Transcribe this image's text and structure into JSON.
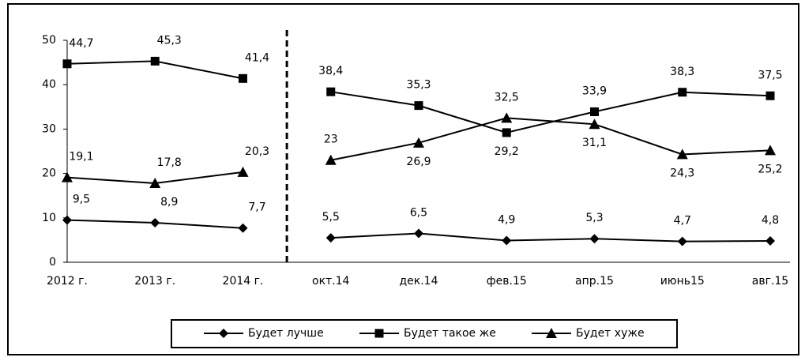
{
  "chart_data": {
    "type": "line",
    "categories": [
      "2012 г.",
      "2013 г.",
      "2014 г.",
      "окт.14",
      "дек.14",
      "фев.15",
      "апр.15",
      "июнь15",
      "авг.15"
    ],
    "series": [
      {
        "name": "Будет лучше",
        "color": "#000000",
        "marker": "diamond",
        "values": [
          9.5,
          8.9,
          7.7,
          5.5,
          6.5,
          4.9,
          5.3,
          4.7,
          4.8
        ],
        "value_labels": [
          "9,5",
          "8,9",
          "7,7",
          "5,5",
          "6,5",
          "4,9",
          "5,3",
          "4,7",
          "4,8"
        ]
      },
      {
        "name": "Будет такое же",
        "color": "#000000",
        "marker": "square",
        "values": [
          44.7,
          45.3,
          41.4,
          38.4,
          35.3,
          29.2,
          33.9,
          38.3,
          37.5
        ],
        "value_labels": [
          "44,7",
          "45,3",
          "41,4",
          "38,4",
          "35,3",
          "29,2",
          "33,9",
          "38,3",
          "37,5"
        ]
      },
      {
        "name": "Будет хуже",
        "color": "#000000",
        "marker": "triangle",
        "values": [
          19.1,
          17.8,
          20.3,
          23,
          26.9,
          32.5,
          31.1,
          24.3,
          25.2
        ],
        "value_labels": [
          "19,1",
          "17,8",
          "20,3",
          "23",
          "26,9",
          "32,5",
          "31,1",
          "24,3",
          "25,2"
        ]
      }
    ],
    "divider": {
      "after": 2,
      "style": "dashed"
    },
    "ylim": [
      0,
      50
    ],
    "yticks": [
      0,
      10,
      20,
      30,
      40,
      50
    ],
    "legend": "bottom"
  }
}
